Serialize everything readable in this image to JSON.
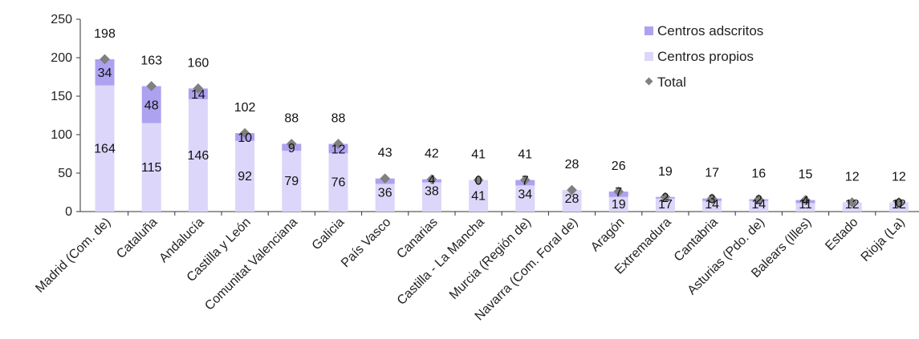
{
  "chart_data": {
    "type": "bar",
    "stacked": true,
    "categories": [
      "Madrid (Com. de)",
      "Cataluña",
      "Andalucía",
      "Castilla y León",
      "Comunitat Valenciana",
      "Galicia",
      "País Vasco",
      "Canarias",
      "Castilla - La Mancha",
      "Murcia (Región de)",
      "Navarra (Com. Foral de)",
      "Aragón",
      "Extremadura",
      "Cantabria",
      "Asturias (Pdo. de)",
      "Balears (Illes)",
      "Estado",
      "Rioja (La)"
    ],
    "series": [
      {
        "name": "Centros propios",
        "values": [
          164,
          115,
          146,
          92,
          79,
          76,
          36,
          38,
          41,
          34,
          28,
          19,
          17,
          14,
          14,
          11,
          12,
          12
        ],
        "color": "#dcd6fa"
      },
      {
        "name": "Centros adscritos",
        "values": [
          34,
          48,
          14,
          10,
          9,
          12,
          7,
          4,
          0,
          7,
          0,
          7,
          2,
          3,
          2,
          4,
          0,
          0
        ],
        "color": "#ada2f0"
      }
    ],
    "total": {
      "name": "Total",
      "values": [
        198,
        163,
        160,
        102,
        88,
        88,
        43,
        42,
        41,
        41,
        28,
        26,
        19,
        17,
        16,
        15,
        12,
        12
      ],
      "color": "#808080"
    },
    "inner_labels": {
      "propios": [
        "164",
        "115",
        "146",
        "92",
        "79",
        "76",
        "36",
        "38",
        "41",
        "34",
        "28",
        "19",
        "17",
        "14",
        "14",
        "11",
        "12",
        "12"
      ],
      "adscritos": [
        "34",
        "48",
        "14",
        "10",
        "9",
        "12",
        "",
        "4",
        "0",
        "7",
        "",
        "7",
        "2",
        "3",
        "2",
        "4",
        "",
        "0"
      ]
    },
    "total_labels": [
      "198",
      "163",
      "160",
      "102",
      "88",
      "88",
      "43",
      "42",
      "41",
      "41",
      "28",
      "26",
      "19",
      "17",
      "16",
      "15",
      "12",
      "12"
    ],
    "yticks": [
      "0",
      "50",
      "100",
      "150",
      "200",
      "250"
    ],
    "ylim": [
      0,
      250
    ],
    "grid": false,
    "legend_position": "top-right",
    "legend": [
      "Centros adscritos",
      "Centros propios",
      "Total"
    ]
  }
}
